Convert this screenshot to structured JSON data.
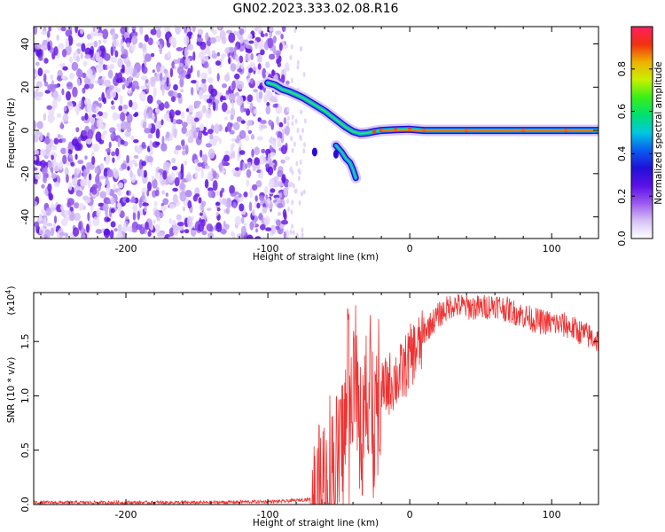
{
  "title": "GN02.2023.333.02.08.R16",
  "chart_data": [
    {
      "type": "heatmap",
      "xlabel": "Height of straight line (km)",
      "ylabel": "Frequency (Hz)",
      "xlim": [
        -265,
        133
      ],
      "ylim": [
        -50,
        48
      ],
      "xticks": [
        -200,
        -100,
        0,
        100
      ],
      "yticks": [
        40,
        20,
        0,
        -20,
        -40
      ],
      "xtick_labels": [
        "-200",
        "-100",
        "0",
        "100"
      ],
      "ytick_labels": [
        "40",
        "20",
        "0",
        "-20",
        "-40"
      ],
      "noise_region_x": [
        -265,
        -86
      ],
      "main_track": [
        [
          -100,
          22
        ],
        [
          -95,
          21
        ],
        [
          -90,
          19
        ],
        [
          -85,
          18
        ],
        [
          -80,
          16.5
        ],
        [
          -75,
          15
        ],
        [
          -70,
          13
        ],
        [
          -65,
          11
        ],
        [
          -60,
          9
        ],
        [
          -55,
          6.5
        ],
        [
          -50,
          4
        ],
        [
          -45,
          1.5
        ],
        [
          -40,
          -0.5
        ],
        [
          -35,
          -1.5
        ],
        [
          -30,
          -1.2
        ],
        [
          -25,
          -0.5
        ],
        [
          -20,
          0
        ],
        [
          -10,
          0.3
        ],
        [
          0,
          0.5
        ],
        [
          10,
          0
        ],
        [
          40,
          0
        ],
        [
          80,
          0
        ],
        [
          110,
          0
        ],
        [
          133,
          0
        ]
      ],
      "secondary_track": [
        [
          -52,
          -7
        ],
        [
          -48,
          -10
        ],
        [
          -45,
          -13
        ],
        [
          -42,
          -15
        ],
        [
          -40,
          -18
        ],
        [
          -38,
          -22
        ]
      ],
      "colorbar": {
        "label": "Normalized spectral amplitude",
        "range": [
          0,
          1
        ],
        "ticks": [
          "0.0",
          "0.2",
          "0.4",
          "0.6",
          "0.8"
        ],
        "colors": [
          "#ffffff",
          "#d6c2f6",
          "#9b59ef",
          "#5a10e6",
          "#1f10d8",
          "#0a5cf0",
          "#00c8e0",
          "#00e070",
          "#38f018",
          "#c8f000",
          "#f0b000",
          "#f03010",
          "#ff2060"
        ]
      }
    },
    {
      "type": "line",
      "xlabel": "Height of straight line (km)",
      "ylabel": "SNR (10 * v/v)",
      "y_multiplier": "(x10",
      "y_multiplier_exp": "4",
      "y_multiplier_close": ")",
      "xlim": [
        -265,
        133
      ],
      "ylim": [
        0,
        1.95
      ],
      "xticks": [
        -200,
        -100,
        0,
        100
      ],
      "yticks": [
        0.0,
        0.5,
        1.0,
        1.5
      ],
      "xtick_labels": [
        "-200",
        "-100",
        "0",
        "100"
      ],
      "ytick_labels": [
        "0.0",
        "0.5",
        "1.0",
        "1.5"
      ],
      "color": "#ee3333",
      "envelope": [
        [
          -265,
          0.02
        ],
        [
          -150,
          0.02
        ],
        [
          -90,
          0.03
        ],
        [
          -70,
          0.05
        ],
        [
          -60,
          0.2
        ],
        [
          -50,
          0.5
        ],
        [
          -45,
          0.8
        ],
        [
          -40,
          1.05
        ],
        [
          -35,
          0.6
        ],
        [
          -30,
          0.95
        ],
        [
          -25,
          1.1
        ],
        [
          -20,
          1.1
        ],
        [
          -15,
          1.2
        ],
        [
          -10,
          1.25
        ],
        [
          -5,
          1.3
        ],
        [
          0,
          1.45
        ],
        [
          10,
          1.6
        ],
        [
          20,
          1.75
        ],
        [
          30,
          1.85
        ],
        [
          40,
          1.83
        ],
        [
          50,
          1.82
        ],
        [
          60,
          1.85
        ],
        [
          70,
          1.8
        ],
        [
          80,
          1.75
        ],
        [
          90,
          1.7
        ],
        [
          100,
          1.68
        ],
        [
          110,
          1.66
        ],
        [
          120,
          1.6
        ],
        [
          133,
          1.52
        ]
      ]
    }
  ]
}
